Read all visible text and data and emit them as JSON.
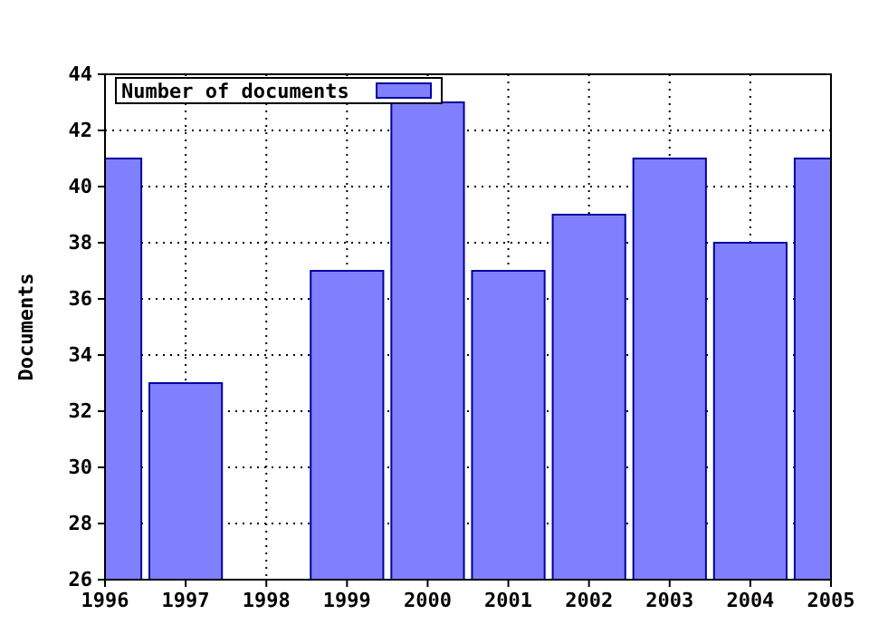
{
  "chart_data": {
    "type": "bar",
    "ylabel": "Documents",
    "x": [
      1996,
      1997,
      1998,
      1999,
      2000,
      2001,
      2002,
      2003,
      2004,
      2005
    ],
    "series": [
      {
        "name": "Number of documents",
        "color": "#8080ff",
        "values": [
          41,
          33,
          null,
          37,
          43,
          37,
          39,
          41,
          38,
          41
        ]
      }
    ],
    "xlim": [
      1996,
      2005
    ],
    "xticks": [
      1996,
      1997,
      1998,
      1999,
      2000,
      2001,
      2002,
      2003,
      2004,
      2005
    ],
    "ylim": [
      26,
      44
    ],
    "yticks": [
      26,
      28,
      30,
      32,
      34,
      36,
      38,
      40,
      42,
      44
    ],
    "grid": true,
    "legend": "top left"
  }
}
